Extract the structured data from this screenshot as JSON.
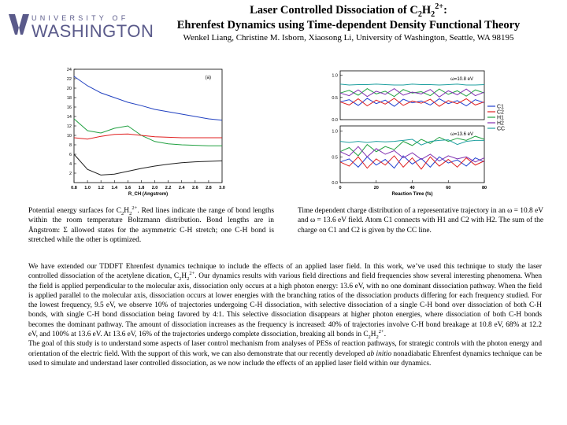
{
  "header": {
    "logo_top": "UNIVERSITY OF",
    "logo_bottom": "WASHINGTON",
    "title": [
      "Laser Controlled Dissociation of C",
      "2",
      "H",
      "2",
      "2+",
      ":"
    ],
    "subtitle": "Ehrenfest Dynamics using Time-dependent Density Functional Theory",
    "authors": "Wenkel Liang, Christine M. Isborn, Xiaosong Li, University of Washington, Seattle, WA 98195"
  },
  "chart_data": [
    {
      "type": "line",
      "annotations": [
        "(a)"
      ],
      "xlabel": "R_CH (Angstrom)",
      "x": [
        0.8,
        1.0,
        1.2,
        1.4,
        1.6,
        1.8,
        2.0,
        2.2,
        2.4,
        2.6,
        2.8,
        3.0
      ],
      "xlim": [
        0.8,
        3.0
      ],
      "xticks": [
        {
          "value": 0.8,
          "label": "0.8"
        },
        {
          "value": 1.0,
          "label": "1.0"
        },
        1.2,
        1.4,
        1.6,
        1.8,
        {
          "value": 2.0,
          "label": "2.0"
        },
        2.2,
        2.4,
        2.6,
        2.8,
        {
          "value": 3.0,
          "label": "3.0"
        }
      ],
      "ylim": [
        0,
        24
      ],
      "yticks": [
        2,
        4,
        6,
        8,
        10,
        12,
        14,
        16,
        18,
        20,
        22,
        24
      ],
      "series": [
        {
          "color": "#2040c0",
          "values": [
            22.5,
            20.5,
            19,
            18,
            17,
            16.3,
            15.5,
            15,
            14.5,
            14,
            13.5,
            13.2
          ]
        },
        {
          "color": "#20a040",
          "values": [
            13.5,
            11,
            10.5,
            11.5,
            12,
            10,
            8.7,
            8.2,
            8,
            7.9,
            7.8,
            7.8
          ]
        },
        {
          "color": "#e02020",
          "values": [
            9.5,
            9.2,
            9.8,
            10.2,
            10.3,
            10,
            9.7,
            9.6,
            9.5,
            9.5,
            9.5,
            9.5
          ]
        },
        {
          "color": "#202020",
          "values": [
            6,
            2.8,
            1.6,
            1.8,
            2.4,
            3,
            3.5,
            3.9,
            4.2,
            4.4,
            4.5,
            4.6
          ]
        }
      ]
    },
    {
      "type": "line",
      "annotations": [
        "ω=10.8 eV"
      ],
      "legend": "right",
      "x": [
        0,
        5,
        10,
        15,
        20,
        25,
        30,
        35,
        40,
        45,
        50,
        55,
        60,
        65,
        70,
        75,
        80
      ],
      "xlim": [
        0,
        80
      ],
      "ylim": [
        0,
        1.1
      ],
      "yticks": [
        {
          "value": 0,
          "label": "0.0"
        },
        0.5,
        {
          "value": 1,
          "label": "1.0"
        }
      ],
      "series": [
        {
          "name": "C1",
          "color": "#2040d0",
          "values": [
            0.4,
            0.45,
            0.32,
            0.48,
            0.36,
            0.44,
            0.3,
            0.46,
            0.38,
            0.42,
            0.33,
            0.47,
            0.36,
            0.43,
            0.31,
            0.45,
            0.38
          ]
        },
        {
          "name": "C2",
          "color": "#e02020",
          "values": [
            0.4,
            0.33,
            0.47,
            0.31,
            0.44,
            0.35,
            0.48,
            0.32,
            0.42,
            0.37,
            0.46,
            0.3,
            0.43,
            0.36,
            0.47,
            0.33,
            0.4
          ]
        },
        {
          "name": "H1",
          "color": "#20a040",
          "values": [
            0.6,
            0.66,
            0.55,
            0.7,
            0.58,
            0.64,
            0.52,
            0.68,
            0.6,
            0.63,
            0.54,
            0.69,
            0.57,
            0.65,
            0.53,
            0.67,
            0.6
          ]
        },
        {
          "name": "H2",
          "color": "#8030b0",
          "values": [
            0.6,
            0.54,
            0.67,
            0.52,
            0.64,
            0.57,
            0.7,
            0.55,
            0.62,
            0.58,
            0.68,
            0.51,
            0.65,
            0.56,
            0.69,
            0.54,
            0.62
          ]
        },
        {
          "name": "CC",
          "color": "#20a0a0",
          "values": [
            0.8,
            0.78,
            0.79,
            0.79,
            0.8,
            0.79,
            0.78,
            0.78,
            0.8,
            0.79,
            0.79,
            0.78,
            0.79,
            0.8,
            0.78,
            0.78,
            0.79
          ]
        }
      ]
    },
    {
      "type": "line",
      "annotations": [
        "ω=13.6 eV"
      ],
      "xlabel": "Reaction Time (fs)",
      "x": [
        0,
        5,
        10,
        15,
        20,
        25,
        30,
        35,
        40,
        45,
        50,
        55,
        60,
        65,
        70,
        75,
        80
      ],
      "xlim": [
        0,
        80
      ],
      "xticks": [
        0,
        20,
        40,
        60,
        80
      ],
      "ylim": [
        0,
        1.1
      ],
      "yticks": [
        {
          "value": 0,
          "label": "0.0"
        },
        0.5,
        {
          "value": 1,
          "label": "1.0"
        }
      ],
      "series": [
        {
          "color": "#2040d0",
          "values": [
            0.4,
            0.46,
            0.3,
            0.5,
            0.34,
            0.45,
            0.28,
            0.52,
            0.36,
            0.47,
            0.3,
            0.5,
            0.38,
            0.44,
            0.32,
            0.48,
            0.4
          ]
        },
        {
          "color": "#e02020",
          "values": [
            0.4,
            0.32,
            0.5,
            0.28,
            0.46,
            0.34,
            0.52,
            0.3,
            0.48,
            0.26,
            0.5,
            0.32,
            0.45,
            0.3,
            0.48,
            0.34,
            0.42
          ]
        },
        {
          "color": "#20a040",
          "values": [
            0.6,
            0.68,
            0.52,
            0.74,
            0.6,
            0.7,
            0.64,
            0.8,
            0.72,
            0.84,
            0.76,
            0.88,
            0.8,
            0.86,
            0.82,
            0.9,
            0.84
          ]
        },
        {
          "color": "#8030b0",
          "values": [
            0.6,
            0.52,
            0.7,
            0.5,
            0.66,
            0.55,
            0.62,
            0.48,
            0.58,
            0.45,
            0.55,
            0.42,
            0.52,
            0.46,
            0.5,
            0.4,
            0.48
          ]
        },
        {
          "color": "#20a0a0",
          "values": [
            0.8,
            0.78,
            0.8,
            0.78,
            0.8,
            0.79,
            0.8,
            0.82,
            0.84,
            0.73,
            0.8,
            0.82,
            0.83,
            0.74,
            0.8,
            0.82,
            0.82
          ]
        }
      ]
    }
  ],
  "caption_left": [
    "Potential energy surfaces for C",
    "2",
    "H",
    "2",
    "2+",
    ". Red lines indicate the range of bond lengths within the room temperature Boltzmann distribution. Bond lengths are in Ångstrom: Σ allowed states for the asymmetric C-H stretch; one C-H bond is stretched while the other is optimized."
  ],
  "caption_right": "Time dependent charge distribution of a representative trajectory in an ω = 10.8 eV and ω = 13.6 eV field. Atom C1 connects with H1 and C2 with H2. The sum of the charge on C1 and C2 is given by the CC line.",
  "body": {
    "p1": [
      "We have extended our TDDFT Ehrenfest dynamics technique to include the effects of an applied laser field. In this work, we’ve used this technique to study the laser controlled dissociation of the acetylene dication, C",
      "2",
      "H",
      "2",
      "2+",
      ". Our dynamics results with various field directions and field frequencies show several interesting phenomena. When the field is applied perpendicular to the molecular axis, dissociation only occurs at a high photon energy: 13.6 eV, with no one dominant dissociation pathway. When the field is applied parallel to the molecular axis, dissociation occurs at lower energies with the branching ratios of the dissociation products differing for each frequency studied. For the lowest frequency, 9.5 eV, we observe 10% of trajectories undergoing C-H dissociation, with selective dissociation of a single C-H bond over dissociation of both C-H bonds, with single C-H bond dissociation being favored by 4:1. This selective dissociation disappears at higher photon energies, where dissociation of both C-H bonds becomes the dominant pathway. The amount of dissociation increases as the frequency is increased: 40% of trajectories involve C-H bond breakage at 10.8 eV, 68% at 12.2 eV, and 100% at 13.6 eV. At 13.6 eV, 16% of the trajectories undergo complete dissociation, breaking all bonds in C",
      "2",
      "H",
      "2",
      "2+",
      "."
    ],
    "p2": [
      "The goal of this study is to understand some aspects of laser control mechanism from analyses of PESs of reaction pathways, for strategic controls with the photon energy and orientation of the electric field. With the support of this work, we can also demonstrate that our recently developed ",
      "ab initio",
      " nonadiabatic Ehrenfest dynamics technique can be used to simulate and understand laser controlled dissociation, as we now include the effects of an applied laser field within our dynamics."
    ]
  }
}
